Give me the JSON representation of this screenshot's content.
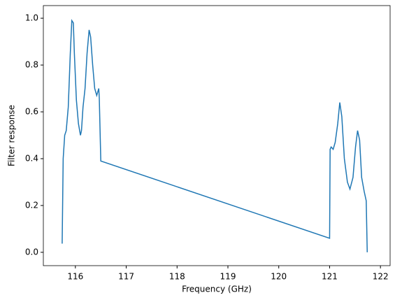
{
  "chart_data": {
    "type": "line",
    "x_label": "Frequency (GHz)",
    "y_label": "Filter response",
    "xlim": [
      115.37,
      122.19
    ],
    "ylim": [
      -0.057,
      1.054
    ],
    "xticks": [
      116,
      117,
      118,
      119,
      120,
      121,
      122
    ],
    "yticks": [
      {
        "value": 0,
        "label": "0.0"
      },
      0.2,
      0.4,
      0.6,
      0.8,
      {
        "value": 1,
        "label": "1.0"
      }
    ],
    "series": [
      {
        "color": "#1f77b4",
        "x": [
          115.74,
          115.76,
          115.79,
          115.82,
          115.86,
          115.9,
          115.93,
          115.96,
          115.98,
          116.02,
          116.06,
          116.1,
          116.12,
          116.15,
          116.19,
          116.23,
          116.27,
          116.3,
          116.34,
          116.38,
          116.42,
          116.46,
          116.47,
          116.5,
          121.0,
          121.01,
          121.03,
          121.07,
          121.11,
          121.16,
          121.2,
          121.24,
          121.29,
          121.35,
          121.4,
          121.46,
          121.51,
          121.55,
          121.59,
          121.63,
          121.68,
          121.72,
          121.74
        ],
        "values": [
          0.037,
          0.4,
          0.5,
          0.52,
          0.62,
          0.85,
          0.99,
          0.98,
          0.85,
          0.65,
          0.55,
          0.5,
          0.52,
          0.62,
          0.7,
          0.85,
          0.95,
          0.92,
          0.8,
          0.7,
          0.67,
          0.7,
          0.66,
          0.39,
          0.06,
          0.44,
          0.45,
          0.44,
          0.47,
          0.55,
          0.64,
          0.58,
          0.4,
          0.3,
          0.27,
          0.32,
          0.45,
          0.52,
          0.48,
          0.32,
          0.26,
          0.22,
          0.0
        ]
      }
    ]
  }
}
